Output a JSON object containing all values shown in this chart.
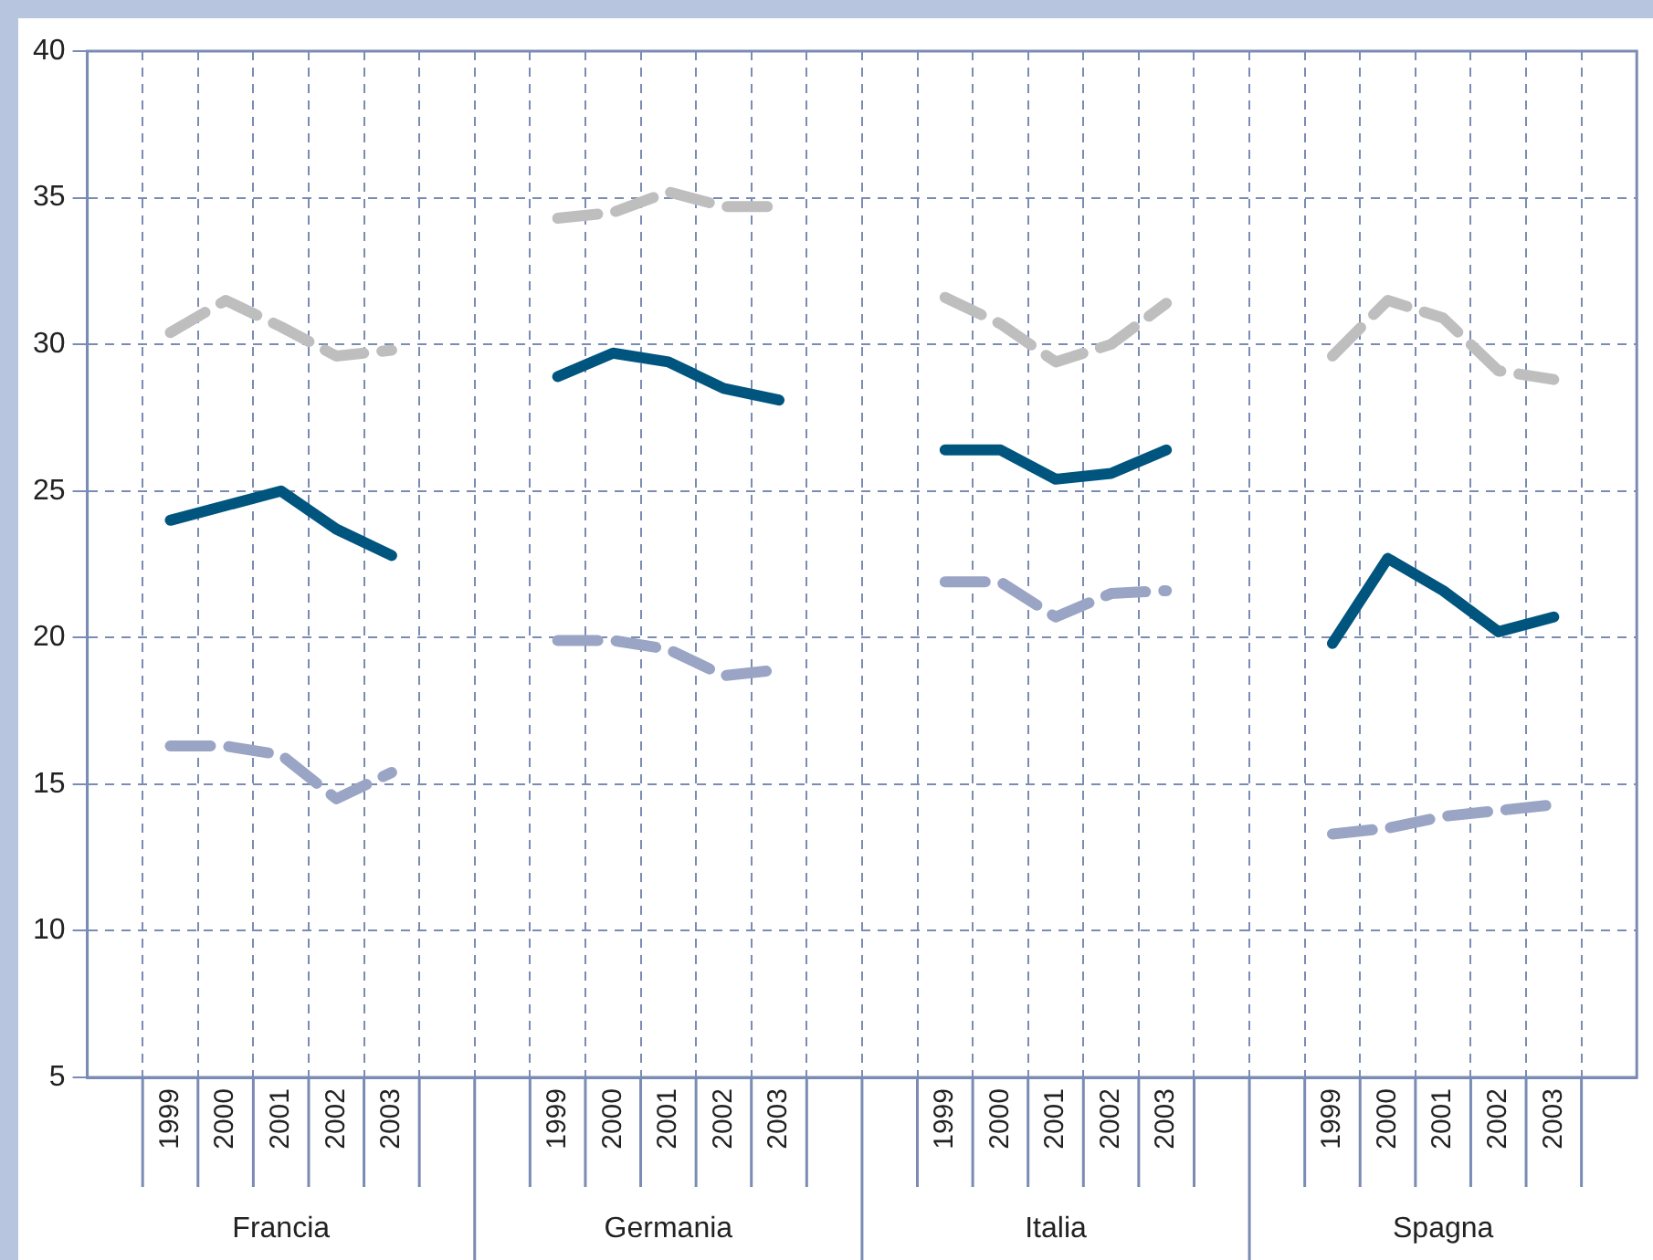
{
  "chart_data": {
    "type": "line",
    "categories": [
      null,
      "1999",
      "2000",
      "2001",
      "2002",
      "2003",
      null,
      null,
      "1999",
      "2000",
      "2001",
      "2002",
      "2003",
      null,
      null,
      "1999",
      "2000",
      "2001",
      "2002",
      "2003",
      null,
      null,
      "1999",
      "2000",
      "2001",
      "2002",
      "2003",
      null
    ],
    "annotations": [
      "Francia",
      "Germania",
      "Italia",
      "Spagna"
    ],
    "series": [
      {
        "color": "#bebebe",
        "line_style": "dashed",
        "values": [
          null,
          30.4,
          31.5,
          30.6,
          29.6,
          29.8,
          null,
          null,
          34.3,
          34.5,
          35.2,
          34.7,
          34.7,
          null,
          null,
          31.6,
          30.7,
          29.4,
          30.0,
          31.4,
          null,
          null,
          29.6,
          31.5,
          30.9,
          29.1,
          28.8,
          null
        ]
      },
      {
        "color": "#00557f",
        "line_style": "solid",
        "values": [
          null,
          24.0,
          24.5,
          25.0,
          23.7,
          22.8,
          null,
          null,
          28.9,
          29.7,
          29.4,
          28.5,
          28.1,
          null,
          null,
          26.4,
          26.4,
          25.4,
          25.6,
          26.4,
          null,
          null,
          19.8,
          22.7,
          21.6,
          20.2,
          20.7,
          null
        ]
      },
      {
        "color": "#9aa4c4",
        "line_style": "dashed",
        "values": [
          null,
          16.3,
          16.3,
          16.0,
          14.5,
          15.4,
          null,
          null,
          19.9,
          19.9,
          19.6,
          18.7,
          18.9,
          null,
          null,
          21.9,
          21.9,
          20.7,
          21.5,
          21.6,
          null,
          null,
          13.3,
          13.5,
          13.9,
          14.1,
          14.3,
          null
        ]
      }
    ],
    "ylim": [
      5,
      40
    ],
    "yticks": [
      5,
      10,
      15,
      20,
      25,
      30,
      35,
      40
    ],
    "grid": true,
    "legend": false,
    "marker": "none"
  }
}
